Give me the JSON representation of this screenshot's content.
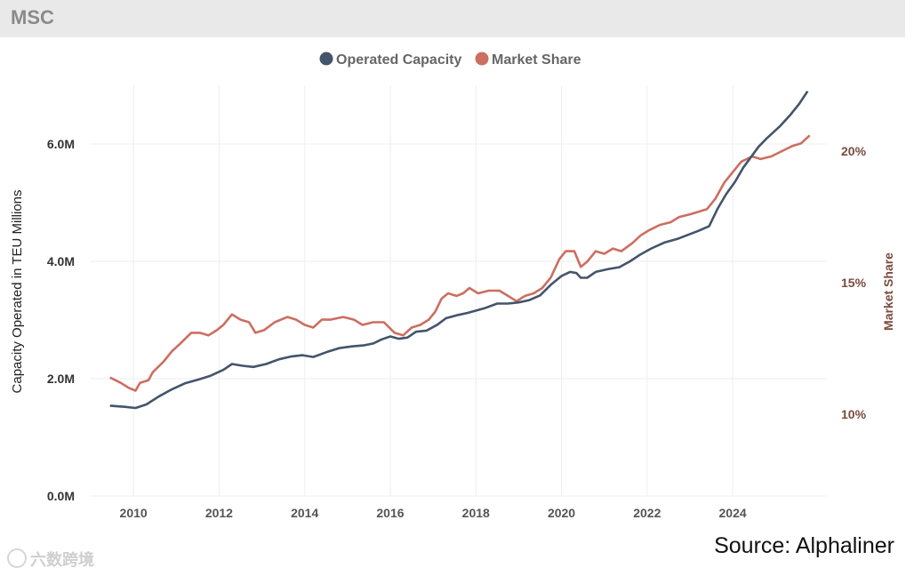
{
  "header": {
    "title": "MSC"
  },
  "source": "Source: Alphaliner",
  "watermark": "六数跨境",
  "chart_data": {
    "type": "line",
    "title": "MSC",
    "ylabel": "Capacity Operated in TEU Millions",
    "y2label": "Market Share",
    "xlim": [
      2009.0,
      2026.2
    ],
    "ylim": [
      0,
      7.0
    ],
    "y2lim": [
      6.9,
      22.5
    ],
    "x_ticks": [
      2010,
      2012,
      2014,
      2016,
      2018,
      2020,
      2022,
      2024
    ],
    "x_tick_labels": [
      "2010",
      "2012",
      "2014",
      "2016",
      "2018",
      "2020",
      "2022",
      "2024"
    ],
    "y_ticks": [
      0,
      2,
      4,
      6
    ],
    "y_tick_labels": [
      "0.0M",
      "2.0M",
      "4.0M",
      "6.0M"
    ],
    "y2_ticks": [
      10,
      15,
      20
    ],
    "y2_tick_labels": [
      "10%",
      "15%",
      "20%"
    ],
    "legend": {
      "position": "top-center",
      "items": [
        "Operated Capacity",
        "Market Share"
      ]
    },
    "colors": {
      "capacity": "#44546a",
      "share": "#cc6e60",
      "y2axis": "#7a4b3e",
      "grid": "#eeeeee",
      "tick": "#555555"
    },
    "series": [
      {
        "name": "Operated Capacity",
        "axis": "left",
        "points": [
          [
            2009.45,
            1.54
          ],
          [
            2009.8,
            1.52
          ],
          [
            2010.05,
            1.5
          ],
          [
            2010.3,
            1.56
          ],
          [
            2010.6,
            1.7
          ],
          [
            2010.9,
            1.82
          ],
          [
            2011.2,
            1.92
          ],
          [
            2011.5,
            1.98
          ],
          [
            2011.8,
            2.05
          ],
          [
            2012.1,
            2.15
          ],
          [
            2012.3,
            2.25
          ],
          [
            2012.55,
            2.22
          ],
          [
            2012.8,
            2.2
          ],
          [
            2013.1,
            2.25
          ],
          [
            2013.4,
            2.33
          ],
          [
            2013.7,
            2.38
          ],
          [
            2013.95,
            2.4
          ],
          [
            2014.2,
            2.37
          ],
          [
            2014.5,
            2.45
          ],
          [
            2014.8,
            2.52
          ],
          [
            2015.1,
            2.55
          ],
          [
            2015.4,
            2.57
          ],
          [
            2015.6,
            2.6
          ],
          [
            2015.8,
            2.67
          ],
          [
            2016.0,
            2.72
          ],
          [
            2016.2,
            2.68
          ],
          [
            2016.4,
            2.7
          ],
          [
            2016.6,
            2.8
          ],
          [
            2016.85,
            2.82
          ],
          [
            2017.1,
            2.92
          ],
          [
            2017.3,
            3.03
          ],
          [
            2017.55,
            3.08
          ],
          [
            2017.8,
            3.12
          ],
          [
            2017.95,
            3.15
          ],
          [
            2018.2,
            3.2
          ],
          [
            2018.5,
            3.28
          ],
          [
            2018.75,
            3.28
          ],
          [
            2019.0,
            3.3
          ],
          [
            2019.25,
            3.34
          ],
          [
            2019.5,
            3.42
          ],
          [
            2019.75,
            3.6
          ],
          [
            2020.0,
            3.75
          ],
          [
            2020.2,
            3.82
          ],
          [
            2020.35,
            3.8
          ],
          [
            2020.45,
            3.72
          ],
          [
            2020.6,
            3.72
          ],
          [
            2020.8,
            3.82
          ],
          [
            2021.1,
            3.87
          ],
          [
            2021.35,
            3.9
          ],
          [
            2021.6,
            4.0
          ],
          [
            2021.85,
            4.12
          ],
          [
            2022.1,
            4.22
          ],
          [
            2022.4,
            4.32
          ],
          [
            2022.7,
            4.38
          ],
          [
            2022.95,
            4.45
          ],
          [
            2023.2,
            4.52
          ],
          [
            2023.45,
            4.6
          ],
          [
            2023.65,
            4.9
          ],
          [
            2023.85,
            5.15
          ],
          [
            2024.05,
            5.35
          ],
          [
            2024.25,
            5.6
          ],
          [
            2024.45,
            5.8
          ],
          [
            2024.6,
            5.95
          ],
          [
            2024.8,
            6.1
          ],
          [
            2025.1,
            6.3
          ],
          [
            2025.35,
            6.5
          ],
          [
            2025.55,
            6.68
          ],
          [
            2025.75,
            6.9
          ]
        ]
      },
      {
        "name": "Market Share",
        "axis": "right",
        "points": [
          [
            2009.45,
            11.4
          ],
          [
            2009.7,
            11.2
          ],
          [
            2009.9,
            11.0
          ],
          [
            2010.05,
            10.9
          ],
          [
            2010.15,
            11.2
          ],
          [
            2010.35,
            11.3
          ],
          [
            2010.45,
            11.6
          ],
          [
            2010.7,
            12.0
          ],
          [
            2010.9,
            12.4
          ],
          [
            2011.1,
            12.7
          ],
          [
            2011.35,
            13.1
          ],
          [
            2011.55,
            13.1
          ],
          [
            2011.75,
            13.0
          ],
          [
            2011.95,
            13.2
          ],
          [
            2012.1,
            13.4
          ],
          [
            2012.3,
            13.8
          ],
          [
            2012.5,
            13.6
          ],
          [
            2012.7,
            13.5
          ],
          [
            2012.85,
            13.1
          ],
          [
            2013.05,
            13.2
          ],
          [
            2013.3,
            13.5
          ],
          [
            2013.6,
            13.7
          ],
          [
            2013.8,
            13.6
          ],
          [
            2014.0,
            13.4
          ],
          [
            2014.2,
            13.3
          ],
          [
            2014.4,
            13.6
          ],
          [
            2014.6,
            13.6
          ],
          [
            2014.9,
            13.7
          ],
          [
            2015.15,
            13.6
          ],
          [
            2015.35,
            13.4
          ],
          [
            2015.6,
            13.5
          ],
          [
            2015.85,
            13.5
          ],
          [
            2016.1,
            13.1
          ],
          [
            2016.3,
            13.0
          ],
          [
            2016.5,
            13.3
          ],
          [
            2016.7,
            13.4
          ],
          [
            2016.9,
            13.6
          ],
          [
            2017.05,
            13.9
          ],
          [
            2017.2,
            14.4
          ],
          [
            2017.35,
            14.6
          ],
          [
            2017.55,
            14.5
          ],
          [
            2017.7,
            14.6
          ],
          [
            2017.85,
            14.8
          ],
          [
            2018.05,
            14.6
          ],
          [
            2018.3,
            14.7
          ],
          [
            2018.55,
            14.7
          ],
          [
            2018.75,
            14.5
          ],
          [
            2018.95,
            14.3
          ],
          [
            2019.15,
            14.5
          ],
          [
            2019.35,
            14.6
          ],
          [
            2019.55,
            14.8
          ],
          [
            2019.75,
            15.2
          ],
          [
            2019.95,
            15.9
          ],
          [
            2020.1,
            16.2
          ],
          [
            2020.3,
            16.2
          ],
          [
            2020.45,
            15.6
          ],
          [
            2020.6,
            15.8
          ],
          [
            2020.8,
            16.2
          ],
          [
            2021.0,
            16.1
          ],
          [
            2021.2,
            16.3
          ],
          [
            2021.4,
            16.2
          ],
          [
            2021.65,
            16.5
          ],
          [
            2021.85,
            16.8
          ],
          [
            2022.05,
            17.0
          ],
          [
            2022.3,
            17.2
          ],
          [
            2022.55,
            17.3
          ],
          [
            2022.75,
            17.5
          ],
          [
            2023.0,
            17.6
          ],
          [
            2023.2,
            17.7
          ],
          [
            2023.4,
            17.8
          ],
          [
            2023.6,
            18.2
          ],
          [
            2023.8,
            18.8
          ],
          [
            2024.0,
            19.2
          ],
          [
            2024.2,
            19.6
          ],
          [
            2024.45,
            19.8
          ],
          [
            2024.65,
            19.7
          ],
          [
            2024.9,
            19.8
          ],
          [
            2025.15,
            20.0
          ],
          [
            2025.4,
            20.2
          ],
          [
            2025.6,
            20.3
          ],
          [
            2025.8,
            20.6
          ]
        ]
      }
    ]
  }
}
